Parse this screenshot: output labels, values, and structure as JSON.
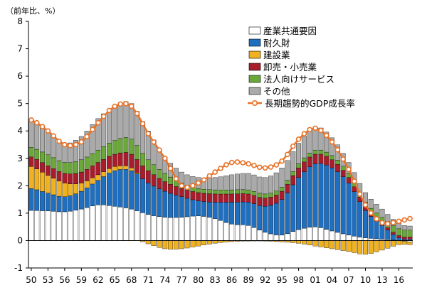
{
  "chart_data": {
    "type": "bar",
    "stacked": true,
    "unit_label": "（前年比、%）",
    "ylim": [
      -1,
      8
    ],
    "yticks": [
      "8",
      "7",
      "6",
      "5",
      "4",
      "3",
      "2",
      "1",
      "0",
      "-1"
    ],
    "ytick_values": [
      8,
      7,
      6,
      5,
      4,
      3,
      2,
      1,
      0,
      -1
    ],
    "xtick_labels": [
      "50",
      "53",
      "56",
      "59",
      "62",
      "65",
      "68",
      "71",
      "74",
      "77",
      "80",
      "83",
      "86",
      "89",
      "92",
      "95",
      "98",
      "01",
      "04",
      "07",
      "10",
      "13",
      "16"
    ],
    "x_start_year": 1950,
    "x_end_year": 2018,
    "grid": false,
    "legend_position": "top-right",
    "colors": {
      "industry": "#ffffff",
      "durables": "#1f6fc1",
      "construction": "#f0b220",
      "wholesale": "#a81c2c",
      "services": "#6aa83a",
      "other": "#aaaaaa",
      "trend": "#e8732a"
    },
    "anchor_years": [
      1950,
      1953,
      1956,
      1959,
      1962,
      1965,
      1968,
      1971,
      1974,
      1977,
      1980,
      1983,
      1986,
      1989,
      1992,
      1995,
      1998,
      2001,
      2004,
      2007,
      2010,
      2013,
      2016,
      2018
    ],
    "series": [
      {
        "key": "industry",
        "name": "産業共通要因",
        "values": [
          1.1,
          1.08,
          1.05,
          1.15,
          1.3,
          1.25,
          1.15,
          0.95,
          0.85,
          0.85,
          0.9,
          0.8,
          0.6,
          0.55,
          0.3,
          0.2,
          0.4,
          0.5,
          0.35,
          0.2,
          0.1,
          0.05,
          0.0,
          -0.05
        ]
      },
      {
        "key": "durables",
        "name": "耐久財",
        "values": [
          0.8,
          0.65,
          0.55,
          0.65,
          0.9,
          1.3,
          1.4,
          1.15,
          0.95,
          0.75,
          0.55,
          0.6,
          0.8,
          0.85,
          0.95,
          1.3,
          1.9,
          2.3,
          2.3,
          1.9,
          1.0,
          0.5,
          0.1,
          0.05
        ]
      },
      {
        "key": "construction",
        "name": "建設業",
        "values": [
          0.8,
          0.65,
          0.5,
          0.3,
          0.2,
          0.15,
          0.1,
          -0.12,
          -0.3,
          -0.3,
          -0.2,
          -0.1,
          -0.04,
          -0.02,
          -0.02,
          -0.05,
          -0.1,
          -0.2,
          -0.3,
          -0.4,
          -0.5,
          -0.35,
          -0.15,
          -0.1
        ]
      },
      {
        "key": "wholesale",
        "name": "卸売・小売業",
        "values": [
          0.35,
          0.35,
          0.35,
          0.4,
          0.45,
          0.45,
          0.5,
          0.45,
          0.35,
          0.3,
          0.3,
          0.3,
          0.3,
          0.3,
          0.3,
          0.3,
          0.35,
          0.35,
          0.3,
          0.2,
          0.15,
          0.1,
          0.08,
          0.08
        ]
      },
      {
        "key": "services",
        "name": "法人向けサービス",
        "values": [
          0.35,
          0.4,
          0.4,
          0.45,
          0.45,
          0.5,
          0.55,
          0.4,
          0.3,
          0.2,
          0.15,
          0.15,
          0.15,
          0.15,
          0.15,
          0.15,
          0.15,
          0.15,
          0.15,
          0.15,
          0.15,
          0.2,
          0.25,
          0.25
        ]
      },
      {
        "key": "other",
        "name": "その他",
        "values": [
          1.0,
          0.9,
          0.7,
          0.85,
          1.15,
          1.25,
          1.3,
          1.05,
          0.6,
          0.4,
          0.4,
          0.45,
          0.55,
          0.6,
          0.6,
          0.7,
          0.75,
          0.85,
          0.65,
          0.4,
          0.35,
          0.3,
          0.2,
          0.15
        ]
      }
    ],
    "trend": {
      "name": "長期趨勢的GDP成長率",
      "values": [
        4.4,
        4.0,
        3.5,
        3.6,
        4.3,
        4.9,
        4.9,
        3.9,
        3.0,
        2.0,
        2.1,
        2.5,
        2.85,
        2.8,
        2.65,
        2.9,
        3.7,
        4.1,
        3.6,
        2.6,
        1.3,
        0.65,
        0.7,
        0.8
      ]
    }
  }
}
